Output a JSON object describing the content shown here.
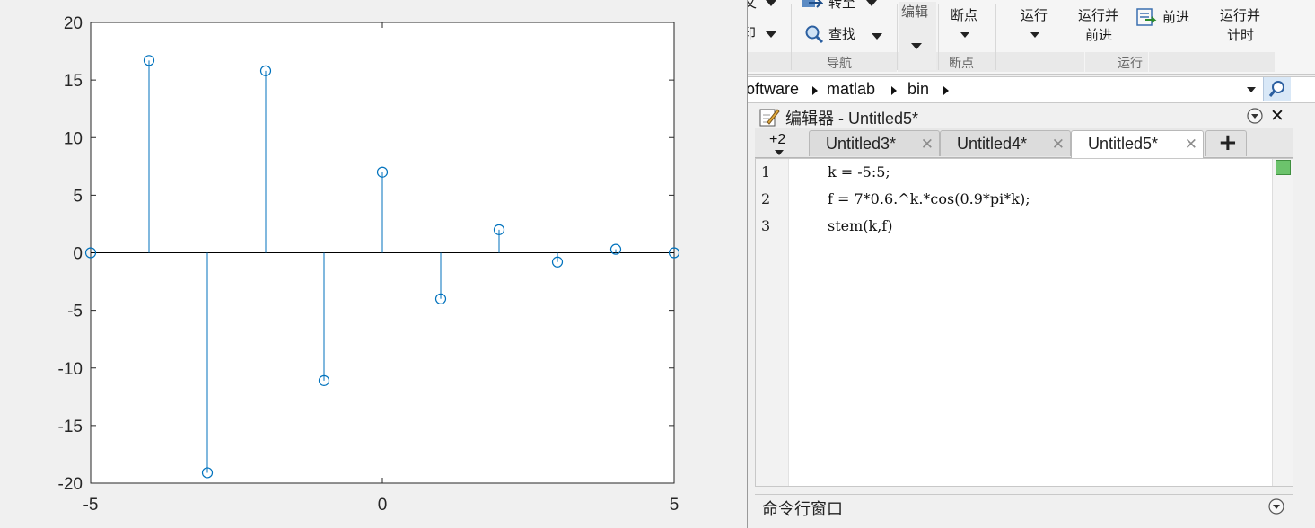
{
  "figure": {
    "chart_data": {
      "type": "stem",
      "x": [
        -5,
        -4,
        -3,
        -2,
        -1,
        0,
        1,
        2,
        3,
        4,
        5
      ],
      "values": [
        0,
        16.7,
        -19.1,
        15.8,
        -11.1,
        7.0,
        -4.0,
        2.0,
        -0.8,
        0.3,
        0.0
      ],
      "xlim": [
        -5,
        5
      ],
      "ylim": [
        -20,
        20
      ],
      "x_ticks": [
        "-5",
        "0",
        "5"
      ],
      "x_tick_values": [
        -5,
        0,
        5
      ],
      "y_ticks": [
        "-20",
        "-15",
        "-10",
        "-5",
        "0",
        "5",
        "10",
        "15",
        "20"
      ],
      "y_tick_values": [
        -20,
        -15,
        -10,
        -5,
        0,
        5,
        10,
        15,
        20
      ],
      "grid": false,
      "series_color": "#0072bd"
    }
  },
  "ribbon": {
    "cut_top_label": "转至",
    "find_label": "查找",
    "edit_label": "编辑",
    "breakpoints_label": "断点",
    "run_label": "运行",
    "run_advance_label": [
      "运行并",
      "前进"
    ],
    "advance_label": "前进",
    "run_time_label": [
      "运行并",
      "计时"
    ],
    "groups": {
      "navigate": "导航",
      "breakpoints": "断点",
      "run": "运行"
    },
    "partial_left_glyphs": [
      "文",
      "印"
    ]
  },
  "address_bar": {
    "segments": [
      "oftware",
      "matlab",
      "bin"
    ]
  },
  "editor": {
    "title": "编辑器 - Untitled5*",
    "overflow_tabs": "+2",
    "tabs": [
      {
        "label": "Untitled3*",
        "active": false
      },
      {
        "label": "Untitled4*",
        "active": false
      },
      {
        "label": "Untitled5*",
        "active": true
      }
    ],
    "add_tab": "+",
    "lines": [
      {
        "num": "1",
        "text": "k = -5:5;"
      },
      {
        "num": "2",
        "text": "f = 7*0.6.^k.*cos(0.9*pi*k);"
      },
      {
        "num": "3",
        "text": "stem(k,f)"
      }
    ]
  },
  "command_window": {
    "title": "命令行窗口"
  },
  "colors": {
    "stem": "#0072bd",
    "ok_indicator": "#6cc36c",
    "search_button": "#d9e8f7"
  }
}
